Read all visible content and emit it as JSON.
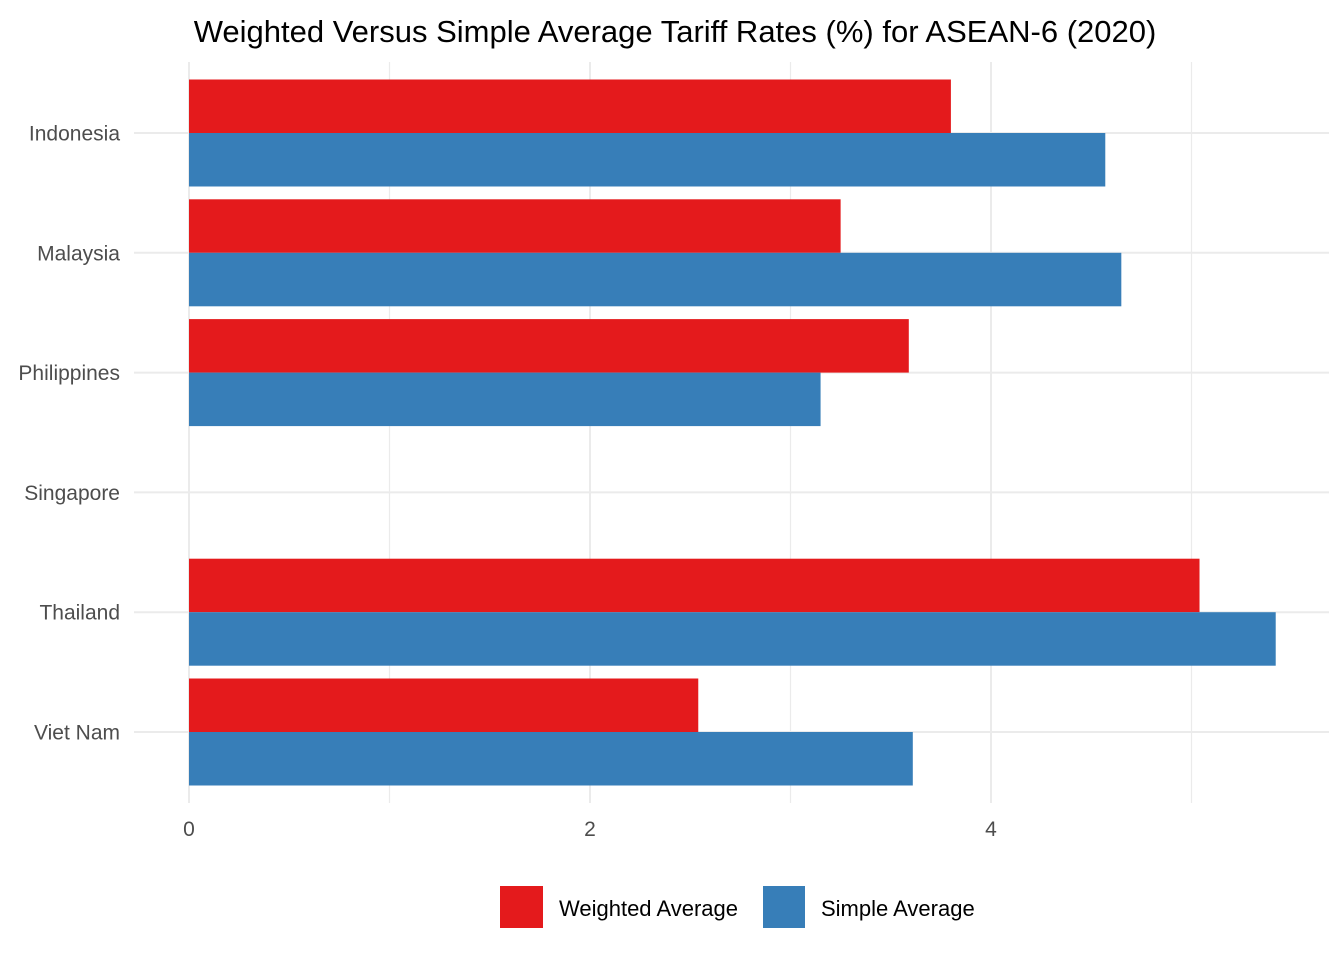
{
  "chart_data": {
    "type": "bar",
    "orientation": "horizontal",
    "title": "Weighted Versus Simple Average Tariff Rates (%) for ASEAN-6 (2020)",
    "xlabel": "",
    "ylabel": "",
    "categories": [
      "Indonesia",
      "Malaysia",
      "Philippines",
      "Singapore",
      "Thailand",
      "Viet Nam"
    ],
    "series": [
      {
        "name": "Weighted Average",
        "color": "#e41a1c",
        "values": [
          3.8,
          3.25,
          3.59,
          0,
          5.04,
          2.54
        ]
      },
      {
        "name": "Simple Average",
        "color": "#377eb8",
        "values": [
          4.57,
          4.65,
          3.15,
          0,
          5.42,
          3.61
        ]
      }
    ],
    "xlim": [
      0,
      5.7
    ],
    "x_ticks": [
      0,
      2,
      4
    ],
    "x_tick_labels": [
      "0",
      "2",
      "4"
    ],
    "x_minor_ticks": [
      1,
      3,
      5
    ],
    "grid": true,
    "legend": {
      "position": "bottom",
      "entries": [
        "Weighted Average",
        "Simple Average"
      ]
    }
  }
}
